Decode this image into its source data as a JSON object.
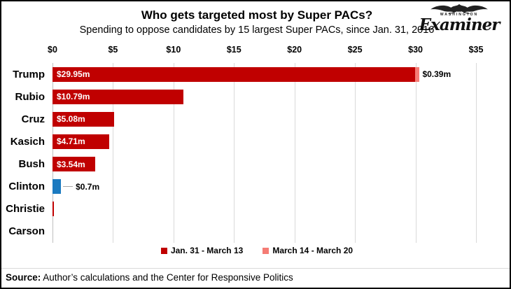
{
  "header": {
    "title": "Who gets targeted most by Super PACs?",
    "subtitle": "Spending to oppose candidates by 15 largest Super PACs, since Jan. 31, 2016"
  },
  "logo": {
    "kicker": "WASHINGTON",
    "brand": "Examiner"
  },
  "footer": {
    "source_label": "Source:",
    "source_text": " Author’s calculations and the Center for Responsive Politics"
  },
  "chart_data": {
    "type": "bar",
    "orientation": "horizontal",
    "title": "Who gets targeted most by Super PACs?",
    "subtitle": "Spending to oppose candidates by 15 largest Super PACs, since Jan. 31, 2016",
    "unit": "$ millions",
    "x_axis": {
      "position": "top",
      "min": 0,
      "max": 35,
      "tick_step": 5,
      "ticks": [
        "$0",
        "$5",
        "$10",
        "$15",
        "$20",
        "$25",
        "$30",
        "$35"
      ]
    },
    "grid": true,
    "legend": {
      "position": "bottom",
      "entries": [
        {
          "label": "Jan. 31 - March 13",
          "color": "#C00000"
        },
        {
          "label": "March 14 - March 20",
          "color": "#F57C75"
        }
      ]
    },
    "categories": [
      "Trump",
      "Rubio",
      "Cruz",
      "Kasich",
      "Bush",
      "Clinton",
      "Christie",
      "Carson"
    ],
    "rows": [
      {
        "category": "Trump",
        "segments": [
          {
            "series": "Jan. 31 - March 13",
            "value": 29.95,
            "color": "#C00000",
            "label": "$29.95m",
            "label_position": "inside"
          },
          {
            "series": "March 14 - March 20",
            "value": 0.39,
            "color": "#F57C75"
          }
        ],
        "outside_label": "$0.39m",
        "leader_line": false
      },
      {
        "category": "Rubio",
        "segments": [
          {
            "series": "Jan. 31 - March 13",
            "value": 10.79,
            "color": "#C00000",
            "label": "$10.79m",
            "label_position": "inside"
          }
        ]
      },
      {
        "category": "Cruz",
        "segments": [
          {
            "series": "Jan. 31 - March 13",
            "value": 5.08,
            "color": "#C00000",
            "label": "$5.08m",
            "label_position": "inside"
          }
        ]
      },
      {
        "category": "Kasich",
        "segments": [
          {
            "series": "Jan. 31 - March 13",
            "value": 4.71,
            "color": "#C00000",
            "label": "$4.71m",
            "label_position": "inside"
          }
        ]
      },
      {
        "category": "Bush",
        "segments": [
          {
            "series": "Jan. 31 - March 13",
            "value": 3.54,
            "color": "#C00000",
            "label": "$3.54m",
            "label_position": "inside"
          }
        ]
      },
      {
        "category": "Clinton",
        "segments": [
          {
            "series": "Jan. 31 - March 13",
            "value": 0.7,
            "color": "#1B7AC0"
          }
        ],
        "outside_label": "$0.7m",
        "leader_line": true
      },
      {
        "category": "Christie",
        "segments": [
          {
            "series": "Jan. 31 - March 13",
            "value": 0.05,
            "color": "#C00000"
          }
        ]
      },
      {
        "category": "Carson",
        "segments": []
      }
    ],
    "colors": {
      "series_1": "#C00000",
      "series_2": "#F57C75",
      "clinton_bar": "#1B7AC0",
      "gridline": "#D9D9D9",
      "leader_line": "#A6A6A6"
    }
  }
}
